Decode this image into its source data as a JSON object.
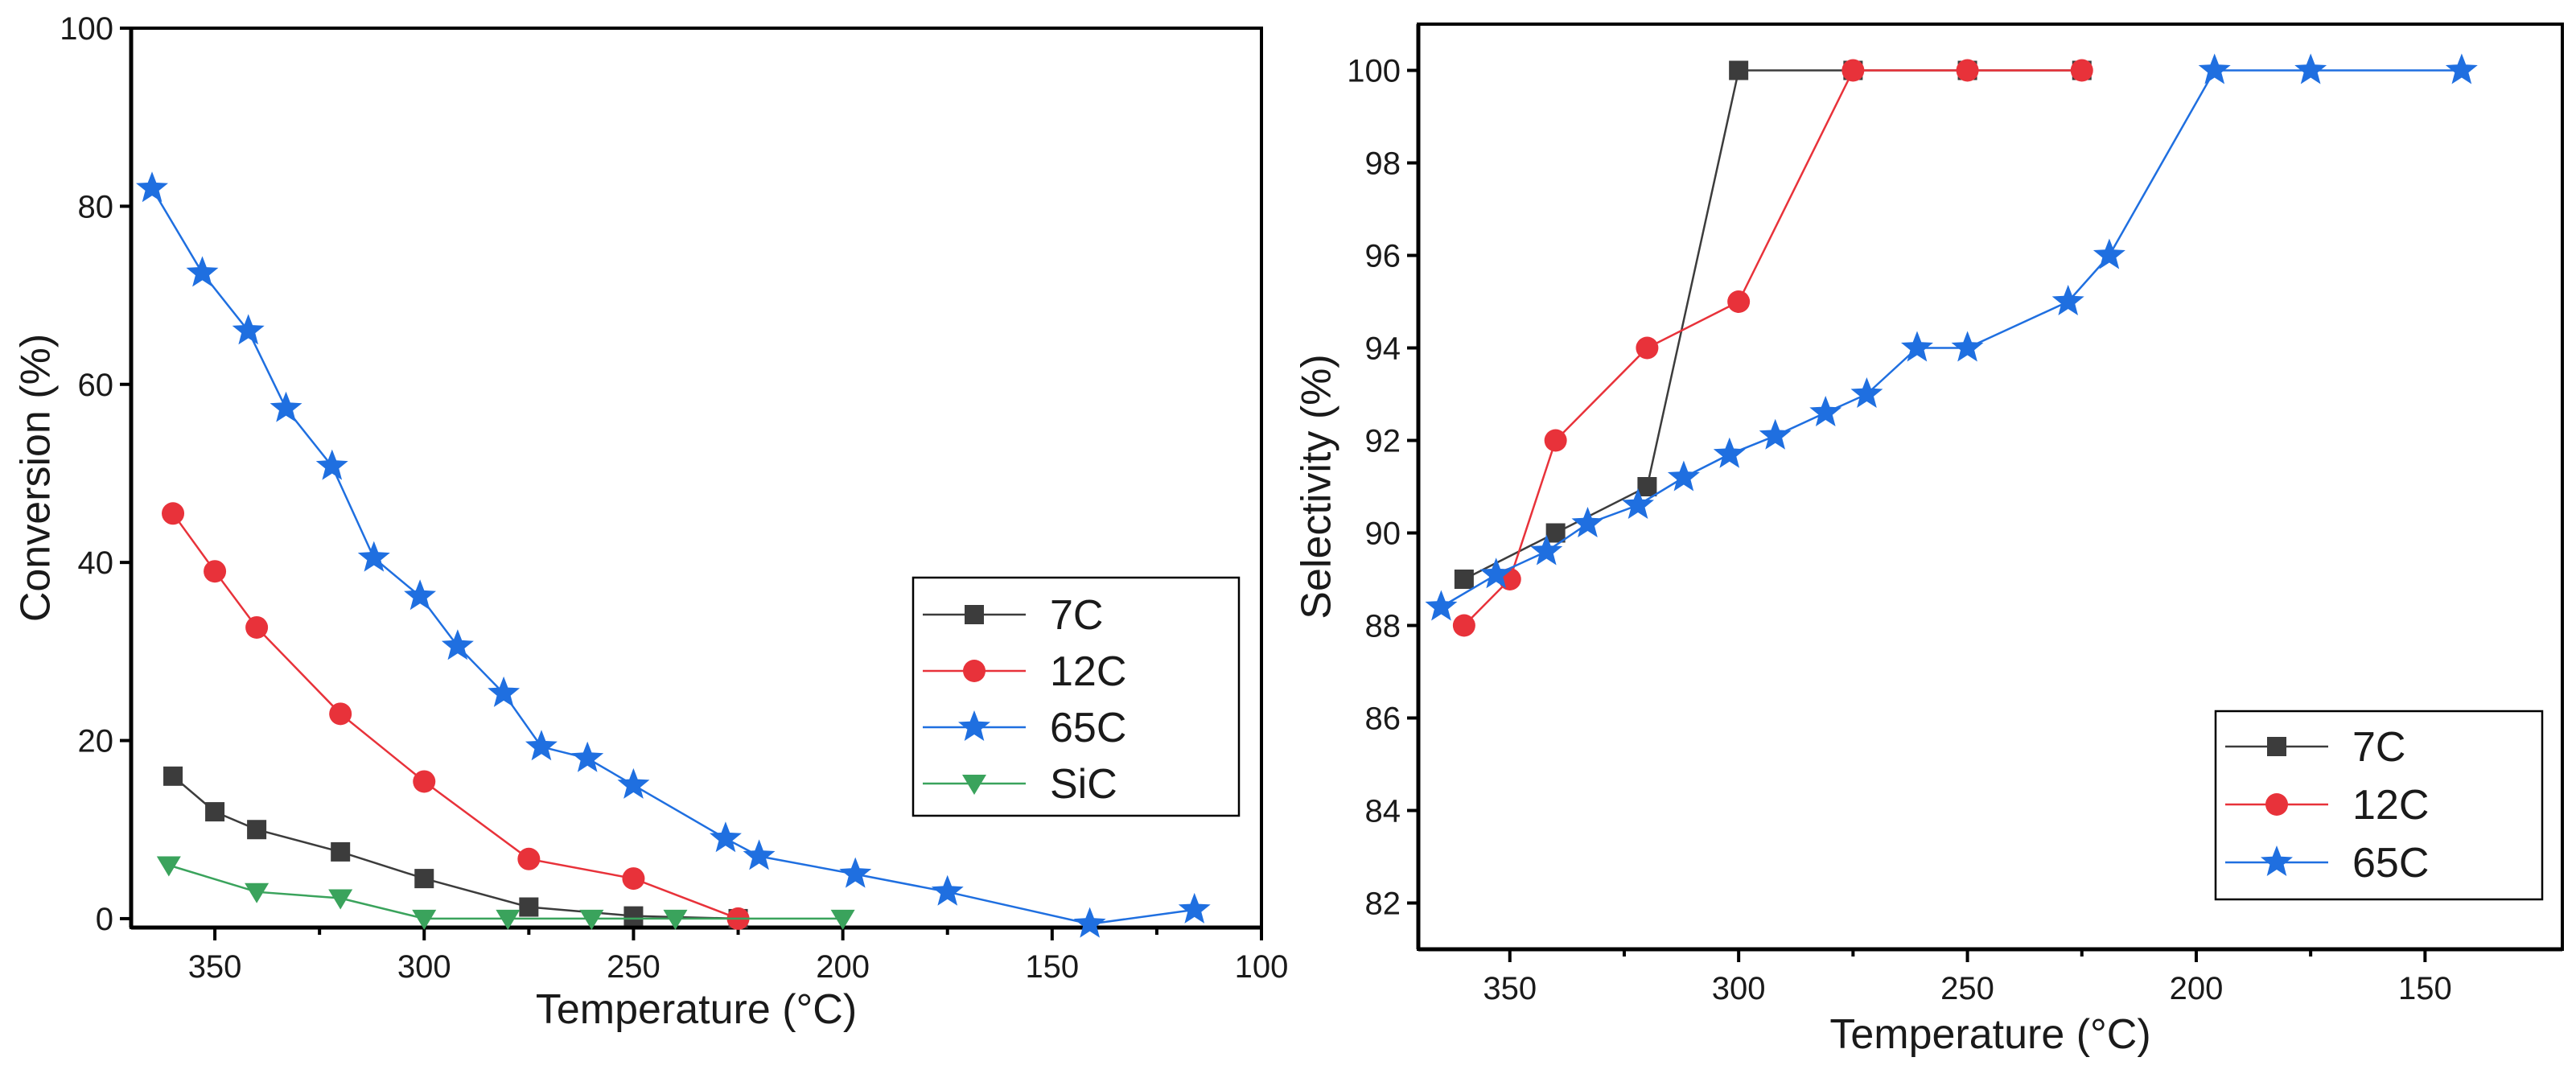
{
  "chart_data": [
    {
      "type": "line",
      "id": "conversion",
      "xlabel": "Temperature (°C)",
      "ylabel": "Conversion (%)",
      "xlim": [
        370,
        100
      ],
      "ylim": [
        -1,
        100
      ],
      "xticks": [
        350,
        300,
        250,
        200,
        150,
        100
      ],
      "yticks": [
        0,
        20,
        40,
        60,
        80,
        100
      ],
      "legend_position": "center-right",
      "series": [
        {
          "name": "7C",
          "color": "#3c3c3c",
          "marker": "square",
          "x": [
            360,
            350,
            340,
            320,
            300,
            275,
            250,
            225
          ],
          "y": [
            16,
            12,
            10,
            7.5,
            4.5,
            1.3,
            0.3,
            0
          ]
        },
        {
          "name": "12C",
          "color": "#e8323a",
          "marker": "circle",
          "x": [
            360,
            350,
            340,
            320,
            300,
            275,
            250,
            225
          ],
          "y": [
            45.5,
            39,
            32.7,
            23,
            15.4,
            6.7,
            4.5,
            0
          ]
        },
        {
          "name": "65C",
          "color": "#1f6fe0",
          "marker": "star",
          "x": [
            365,
            353,
            342,
            333,
            322,
            312,
            301,
            292,
            281,
            272,
            261,
            250,
            228,
            220,
            197,
            175,
            141,
            116
          ],
          "y": [
            82,
            72.5,
            66,
            57.3,
            50.8,
            40.5,
            36.2,
            30.6,
            25.3,
            19.3,
            18,
            15,
            9,
            7,
            5,
            3,
            -0.6,
            1
          ]
        },
        {
          "name": "SiC",
          "color": "#3aa35c",
          "marker": "triangle-down",
          "x": [
            361,
            340,
            320,
            300,
            280,
            260,
            240,
            200
          ],
          "y": [
            6,
            3,
            2.3,
            0,
            0,
            0,
            0,
            0
          ]
        }
      ]
    },
    {
      "type": "line",
      "id": "selectivity",
      "xlabel": "Temperature (°C)",
      "ylabel": "Selectivity (%)",
      "xlim": [
        370,
        120
      ],
      "ylim": [
        81,
        101
      ],
      "xticks": [
        350,
        300,
        250,
        200,
        150
      ],
      "yticks": [
        82,
        84,
        86,
        88,
        90,
        92,
        94,
        96,
        98,
        100
      ],
      "legend_position": "bottom-right",
      "series": [
        {
          "name": "7C",
          "color": "#3c3c3c",
          "marker": "square",
          "x": [
            360,
            340,
            320,
            300,
            275,
            250,
            225
          ],
          "y": [
            89,
            90,
            91,
            100,
            100,
            100,
            100
          ]
        },
        {
          "name": "12C",
          "color": "#e8323a",
          "marker": "circle",
          "x": [
            360,
            350,
            340,
            320,
            300,
            275,
            250,
            225
          ],
          "y": [
            88,
            89,
            92,
            94,
            95,
            100,
            100,
            100
          ]
        },
        {
          "name": "65C",
          "color": "#1f6fe0",
          "marker": "star",
          "x": [
            365,
            353,
            342,
            333,
            322,
            312,
            302,
            292,
            281,
            272,
            261,
            250,
            228,
            219,
            196,
            175,
            142
          ],
          "y": [
            88.4,
            89.1,
            89.6,
            90.2,
            90.6,
            91.2,
            91.7,
            92.1,
            92.6,
            93,
            94,
            94,
            95,
            96,
            100,
            100,
            100
          ]
        }
      ]
    }
  ]
}
